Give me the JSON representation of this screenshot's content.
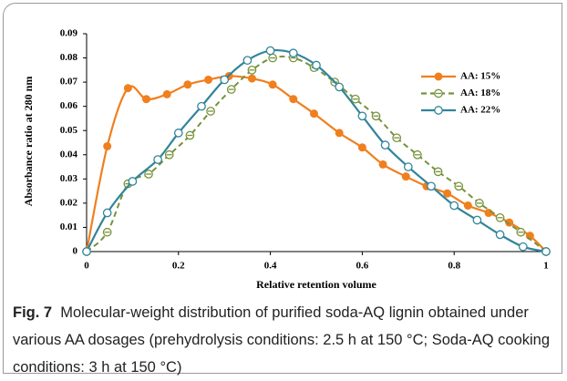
{
  "caption_label": "Fig. 7",
  "caption": "Molecular-weight distribution of purified soda-AQ lignin obtained under various AA dosages (prehydrolysis conditions: 2.5 h at 150 °C; Soda-AQ cooking conditions: 3 h at 150 °C)",
  "chart_data": {
    "type": "line",
    "x_label": "Relative retention volume",
    "y_label": "Absorbance ratio at 280 nm",
    "xlim": [
      0,
      1
    ],
    "xticks": [
      0,
      0.2,
      0.4,
      0.6,
      0.8,
      1
    ],
    "ylim": [
      0,
      0.09
    ],
    "yticks": [
      0,
      0.01,
      0.02,
      0.03,
      0.04,
      0.05,
      0.06,
      0.07,
      0.08,
      0.09
    ],
    "grid": false,
    "legend": "upper right",
    "series": [
      {
        "name": "AA: 15%",
        "color": "#f07f1e",
        "linestyle": "solid",
        "marker": "filled",
        "x": [
          0,
          0.045,
          0.09,
          0.13,
          0.175,
          0.22,
          0.265,
          0.31,
          0.36,
          0.405,
          0.45,
          0.495,
          0.55,
          0.6,
          0.645,
          0.695,
          0.74,
          0.785,
          0.83,
          0.875,
          0.92,
          0.965,
          1
        ],
        "values": [
          0,
          0.0435,
          0.0675,
          0.063,
          0.065,
          0.069,
          0.071,
          0.0725,
          0.0715,
          0.069,
          0.063,
          0.057,
          0.049,
          0.043,
          0.036,
          0.031,
          0.027,
          0.024,
          0.019,
          0.016,
          0.012,
          0.0065,
          0
        ]
      },
      {
        "name": "AA: 18%",
        "color": "#77933c",
        "linestyle": "dashed",
        "marker": "open-bar",
        "x": [
          0,
          0.045,
          0.09,
          0.135,
          0.18,
          0.225,
          0.27,
          0.315,
          0.36,
          0.405,
          0.45,
          0.495,
          0.54,
          0.585,
          0.63,
          0.675,
          0.72,
          0.765,
          0.81,
          0.855,
          0.9,
          0.945,
          1
        ],
        "values": [
          0,
          0.008,
          0.028,
          0.032,
          0.04,
          0.048,
          0.058,
          0.067,
          0.075,
          0.08,
          0.08,
          0.076,
          0.07,
          0.063,
          0.056,
          0.047,
          0.04,
          0.033,
          0.027,
          0.02,
          0.014,
          0.008,
          0
        ]
      },
      {
        "name": "AA: 22%",
        "color": "#31849b",
        "linestyle": "solid",
        "marker": "open",
        "x": [
          0,
          0.045,
          0.1,
          0.155,
          0.2,
          0.25,
          0.3,
          0.35,
          0.4,
          0.45,
          0.5,
          0.55,
          0.6,
          0.65,
          0.7,
          0.75,
          0.8,
          0.85,
          0.9,
          0.95,
          1
        ],
        "values": [
          0,
          0.016,
          0.029,
          0.038,
          0.049,
          0.06,
          0.071,
          0.079,
          0.083,
          0.082,
          0.077,
          0.068,
          0.056,
          0.044,
          0.035,
          0.027,
          0.019,
          0.013,
          0.007,
          0.002,
          0
        ]
      }
    ]
  }
}
